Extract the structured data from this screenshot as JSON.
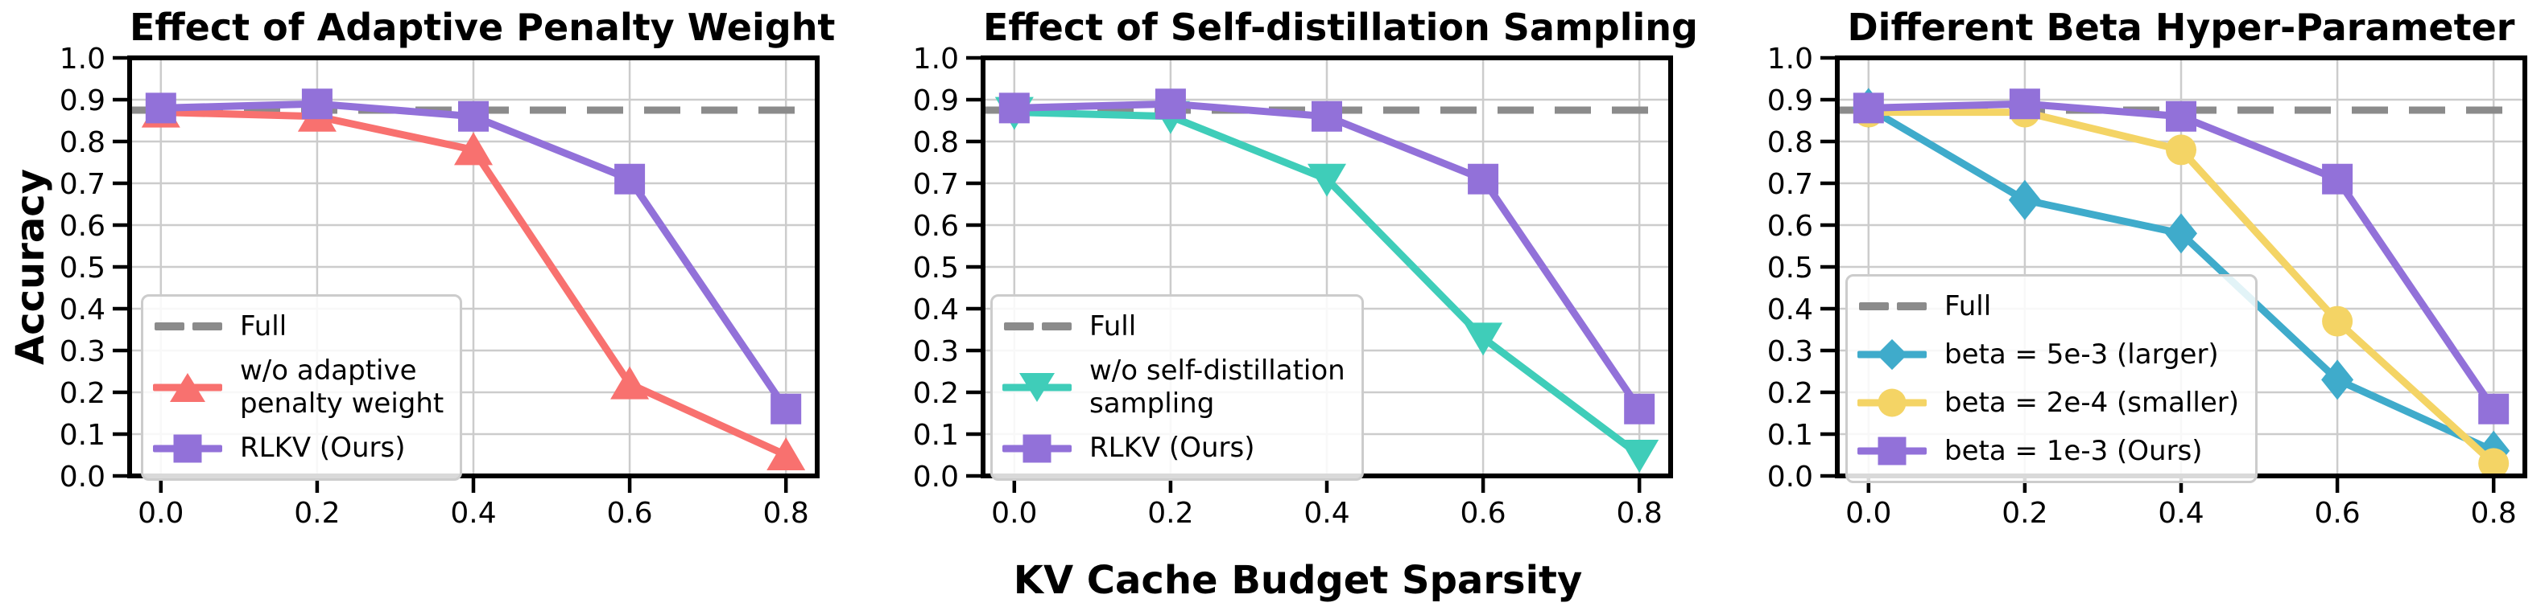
{
  "figure": {
    "ylabel": "Accuracy",
    "xlabel": "KV Cache Budget Sparsity",
    "background": "#FFFFFF",
    "colors": {
      "axis": "#000000",
      "grid": "#CCCCCC",
      "baseline": "#8B8B8B",
      "red": "#F8716F",
      "purple": "#9271D9",
      "turquoise": "#3FCDB9",
      "teal_blue": "#3FABCB",
      "yellow": "#F4D465"
    }
  },
  "chart_data": [
    {
      "type": "line",
      "title": "Effect of Adaptive Penalty Weight",
      "xlabel": "KV Cache Budget Sparsity",
      "ylabel": "Accuracy",
      "x": [
        0.0,
        0.2,
        0.4,
        0.6,
        0.8
      ],
      "xticks": [
        0.0,
        0.2,
        0.4,
        0.6,
        0.8
      ],
      "xtick_labels": [
        "0.0",
        "0.2",
        "0.4",
        "0.6",
        "0.8"
      ],
      "yticks": [
        0.0,
        0.1,
        0.2,
        0.3,
        0.4,
        0.5,
        0.6,
        0.7,
        0.8,
        0.9,
        1.0
      ],
      "ytick_labels": [
        "0.0",
        "0.1",
        "0.2",
        "0.3",
        "0.4",
        "0.5",
        "0.6",
        "0.7",
        "0.8",
        "0.9",
        "1.0"
      ],
      "ylim": [
        0.0,
        1.0
      ],
      "xlim": [
        -0.04,
        0.84
      ],
      "grid": true,
      "baseline": {
        "label": "Full",
        "value": 0.875,
        "color": "#8B8B8B",
        "style": "dashed"
      },
      "series": [
        {
          "name": "w/o adaptive penalty weight",
          "marker": "triangle-up",
          "color": "#F8716F",
          "values": [
            0.87,
            0.86,
            0.78,
            0.22,
            0.05
          ]
        },
        {
          "name": "RLKV (Ours)",
          "marker": "square",
          "color": "#9271D9",
          "values": [
            0.88,
            0.89,
            0.86,
            0.71,
            0.16
          ]
        }
      ],
      "legend": {
        "position": "lower-left",
        "entries": [
          {
            "label_lines": [
              "Full"
            ],
            "marker": "dash",
            "color": "#8B8B8B"
          },
          {
            "label_lines": [
              "w/o adaptive",
              "penalty weight"
            ],
            "marker": "triangle-up",
            "color": "#F8716F"
          },
          {
            "label_lines": [
              "RLKV (Ours)"
            ],
            "marker": "square",
            "color": "#9271D9"
          }
        ]
      }
    },
    {
      "type": "line",
      "title": "Effect of Self-distillation Sampling",
      "xlabel": "KV Cache Budget Sparsity",
      "ylabel": "Accuracy",
      "x": [
        0.0,
        0.2,
        0.4,
        0.6,
        0.8
      ],
      "xticks": [
        0.0,
        0.2,
        0.4,
        0.6,
        0.8
      ],
      "xtick_labels": [
        "0.0",
        "0.2",
        "0.4",
        "0.6",
        "0.8"
      ],
      "yticks": [
        0.0,
        0.1,
        0.2,
        0.3,
        0.4,
        0.5,
        0.6,
        0.7,
        0.8,
        0.9,
        1.0
      ],
      "ytick_labels": [
        "0.0",
        "0.1",
        "0.2",
        "0.3",
        "0.4",
        "0.5",
        "0.6",
        "0.7",
        "0.8",
        "0.9",
        "1.0"
      ],
      "ylim": [
        0.0,
        1.0
      ],
      "xlim": [
        -0.04,
        0.84
      ],
      "grid": true,
      "baseline": {
        "label": "Full",
        "value": 0.875,
        "color": "#8B8B8B",
        "style": "dashed"
      },
      "series": [
        {
          "name": "w/o self-distillation sampling",
          "marker": "triangle-down",
          "color": "#3FCDB9",
          "values": [
            0.87,
            0.86,
            0.71,
            0.33,
            0.05
          ]
        },
        {
          "name": "RLKV (Ours)",
          "marker": "square",
          "color": "#9271D9",
          "values": [
            0.88,
            0.89,
            0.86,
            0.71,
            0.16
          ]
        }
      ],
      "legend": {
        "position": "lower-left",
        "entries": [
          {
            "label_lines": [
              "Full"
            ],
            "marker": "dash",
            "color": "#8B8B8B"
          },
          {
            "label_lines": [
              "w/o self-distillation",
              "sampling"
            ],
            "marker": "triangle-down",
            "color": "#3FCDB9"
          },
          {
            "label_lines": [
              "RLKV (Ours)"
            ],
            "marker": "square",
            "color": "#9271D9"
          }
        ]
      }
    },
    {
      "type": "line",
      "title": "Different Beta Hyper-Parameter",
      "xlabel": "KV Cache Budget Sparsity",
      "ylabel": "Accuracy",
      "x": [
        0.0,
        0.2,
        0.4,
        0.6,
        0.8
      ],
      "xticks": [
        0.0,
        0.2,
        0.4,
        0.6,
        0.8
      ],
      "xtick_labels": [
        "0.0",
        "0.2",
        "0.4",
        "0.6",
        "0.8"
      ],
      "yticks": [
        0.0,
        0.1,
        0.2,
        0.3,
        0.4,
        0.5,
        0.6,
        0.7,
        0.8,
        0.9,
        1.0
      ],
      "ytick_labels": [
        "0.0",
        "0.1",
        "0.2",
        "0.3",
        "0.4",
        "0.5",
        "0.6",
        "0.7",
        "0.8",
        "0.9",
        "1.0"
      ],
      "ylim": [
        0.0,
        1.0
      ],
      "xlim": [
        -0.04,
        0.84
      ],
      "grid": true,
      "baseline": {
        "label": "Full",
        "value": 0.875,
        "color": "#8B8B8B",
        "style": "dashed"
      },
      "series": [
        {
          "name": "beta = 5e-3 (larger)",
          "marker": "diamond",
          "color": "#3FABCB",
          "values": [
            0.88,
            0.66,
            0.58,
            0.23,
            0.06
          ]
        },
        {
          "name": "beta = 2e-4 (smaller)",
          "marker": "circle",
          "color": "#F4D465",
          "values": [
            0.87,
            0.87,
            0.78,
            0.37,
            0.03
          ]
        },
        {
          "name": "beta = 1e-3 (Ours)",
          "marker": "square",
          "color": "#9271D9",
          "values": [
            0.88,
            0.89,
            0.86,
            0.71,
            0.16
          ]
        }
      ],
      "legend": {
        "position": "lower-left",
        "entries": [
          {
            "label_lines": [
              "Full"
            ],
            "marker": "dash",
            "color": "#8B8B8B"
          },
          {
            "label_lines": [
              "beta = 5e-3 (larger)"
            ],
            "marker": "diamond",
            "color": "#3FABCB"
          },
          {
            "label_lines": [
              "beta = 2e-4 (smaller)"
            ],
            "marker": "circle",
            "color": "#F4D465"
          },
          {
            "label_lines": [
              "beta = 1e-3 (Ours)"
            ],
            "marker": "square",
            "color": "#9271D9"
          }
        ]
      }
    }
  ]
}
